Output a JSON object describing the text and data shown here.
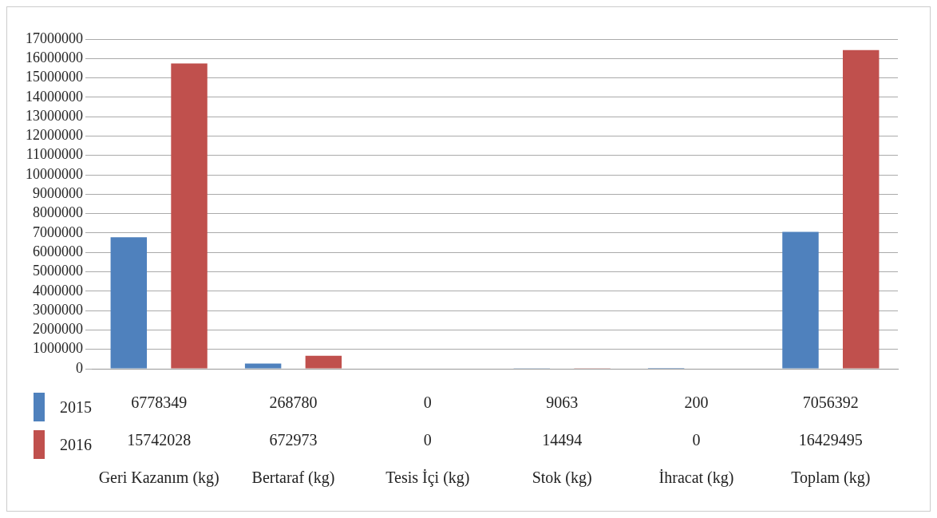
{
  "chart_data": {
    "type": "bar",
    "categories": [
      "Geri Kazanım (kg)",
      "Bertaraf (kg)",
      "Tesis İçi (kg)",
      "Stok (kg)",
      "İhracat (kg)",
      "Toplam (kg)"
    ],
    "series": [
      {
        "name": "2015",
        "color": "#4f81bd",
        "values": [
          6778349,
          268780,
          0,
          9063,
          200,
          7056392
        ]
      },
      {
        "name": "2016",
        "color": "#c0504d",
        "values": [
          15742028,
          672973,
          0,
          14494,
          0,
          16429495
        ]
      }
    ],
    "ylim": [
      0,
      17000000
    ],
    "yticks": [
      0,
      1000000,
      2000000,
      3000000,
      4000000,
      5000000,
      6000000,
      7000000,
      8000000,
      9000000,
      10000000,
      11000000,
      12000000,
      13000000,
      14000000,
      15000000,
      16000000,
      17000000
    ],
    "grid": "y",
    "data_labels": true,
    "legend": "bottom left"
  }
}
